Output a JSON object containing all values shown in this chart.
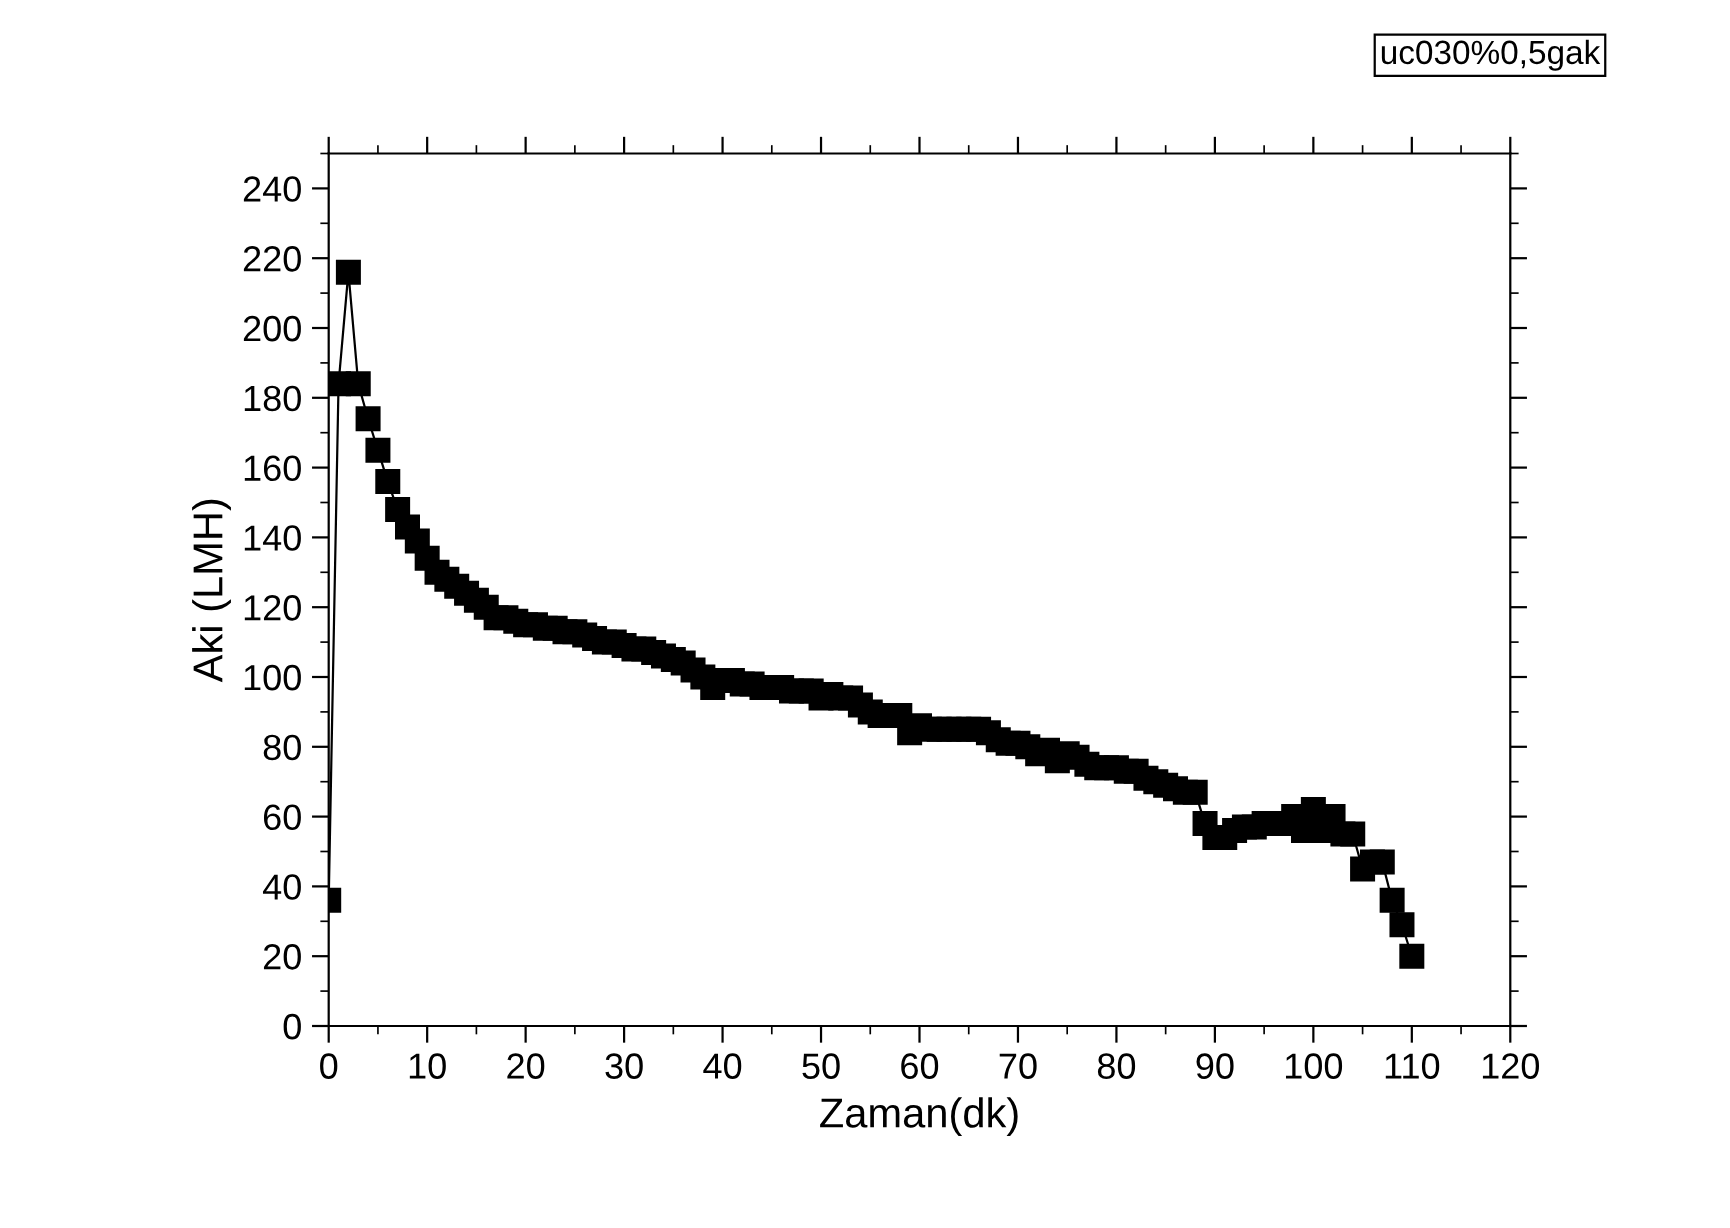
{
  "chart_data": {
    "type": "line",
    "xlabel": "Zaman(dk)",
    "ylabel": "Aki (LMH)",
    "annotations": [
      "uc030%0,5gak"
    ],
    "x": [
      0,
      1,
      2,
      3,
      4,
      5,
      6,
      7,
      8,
      9,
      10,
      11,
      12,
      13,
      14,
      15,
      16,
      17,
      18,
      19,
      20,
      21,
      22,
      23,
      24,
      25,
      26,
      27,
      28,
      29,
      30,
      31,
      32,
      33,
      34,
      35,
      36,
      37,
      38,
      39,
      40,
      41,
      42,
      43,
      44,
      45,
      46,
      47,
      48,
      49,
      50,
      51,
      52,
      53,
      54,
      55,
      56,
      57,
      58,
      59,
      60,
      61,
      62,
      63,
      64,
      65,
      66,
      67,
      68,
      69,
      70,
      71,
      72,
      73,
      74,
      75,
      76,
      77,
      78,
      79,
      80,
      81,
      82,
      83,
      84,
      85,
      86,
      87,
      88,
      89,
      90,
      91,
      92,
      93,
      94,
      95,
      96,
      97,
      98,
      99,
      100,
      101,
      102,
      103,
      104,
      105,
      106,
      107,
      108,
      109,
      110
    ],
    "series": [
      {
        "color": "#000000",
        "values": [
          36,
          184,
          216,
          184,
          174,
          165,
          156,
          148,
          143,
          139,
          134,
          130,
          128,
          126,
          124,
          122,
          120,
          117,
          117,
          116,
          115,
          115,
          114,
          114,
          113,
          113,
          112,
          111,
          110,
          110,
          109,
          108,
          108,
          107,
          106,
          105,
          104,
          102,
          100,
          97,
          99,
          99,
          98,
          98,
          97,
          97,
          97,
          96,
          96,
          96,
          94,
          95,
          94,
          94,
          92,
          90,
          89,
          89,
          89,
          84,
          86,
          85,
          85,
          85,
          85,
          85,
          85,
          84,
          82,
          81,
          81,
          80,
          78,
          79,
          76,
          78,
          77,
          75,
          74,
          74,
          74,
          73,
          73,
          71,
          70,
          69,
          68,
          67,
          67,
          58,
          54,
          54,
          56,
          57,
          57,
          58,
          58,
          58,
          60,
          56,
          62,
          56,
          60,
          55,
          55,
          45,
          47,
          47,
          36,
          29,
          20
        ]
      }
    ],
    "xlim": [
      0,
      120
    ],
    "xticks": [
      0,
      10,
      20,
      30,
      40,
      50,
      60,
      70,
      80,
      90,
      100,
      110,
      120
    ],
    "ylim": [
      0,
      250
    ],
    "yticks": [
      0,
      20,
      40,
      60,
      80,
      100,
      120,
      140,
      160,
      180,
      200,
      220,
      240
    ],
    "marker": "square",
    "line_style": "solid",
    "grid": false,
    "legend": false
  }
}
